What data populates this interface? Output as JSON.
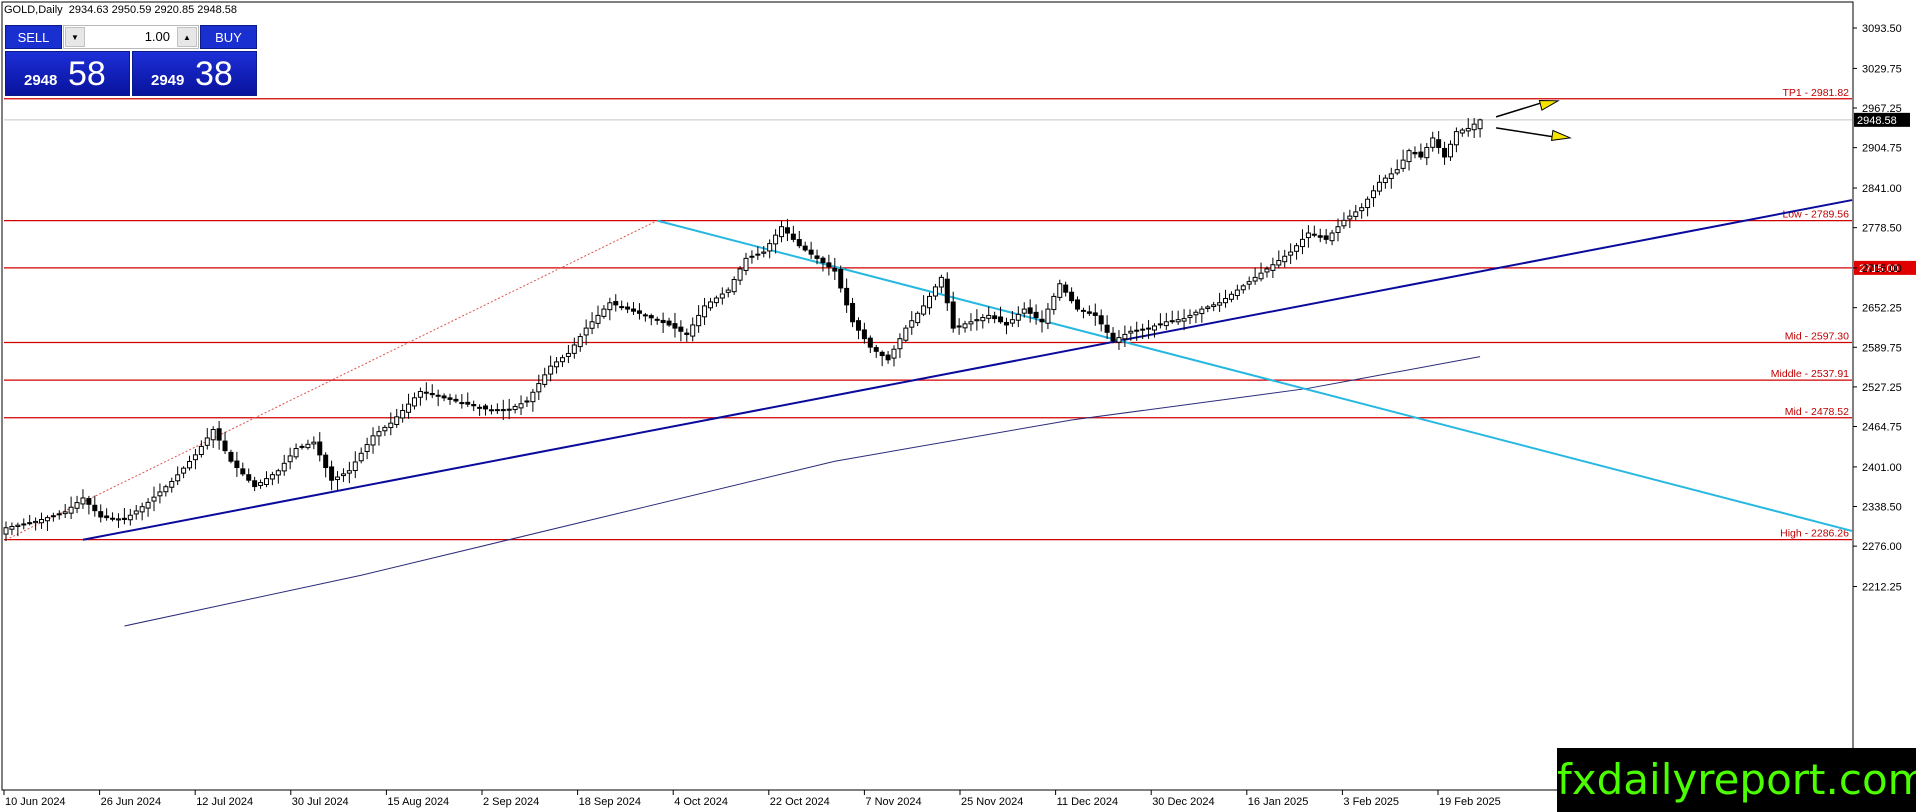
{
  "header": {
    "symbol_line": "GOLD,Daily  2934.63 2950.59 2920.85 2948.58"
  },
  "trade_panel": {
    "sell_label": "SELL",
    "buy_label": "BUY",
    "lot": "1.00",
    "sell_prefix": "2948",
    "sell_big": "58",
    "buy_prefix": "2949",
    "buy_big": "38"
  },
  "watermark": "fxdailyreport.com",
  "colors": {
    "level_line": "#d10000",
    "support_trendline": "#0a0a9c",
    "resistance_trendline": "#26b8e0",
    "moving_average": "#2b2b7a",
    "arrow_fill": "#f5e400",
    "watermark_text": "#4cff00",
    "panel_blue": "#1a2fd0"
  },
  "chart_data": {
    "type": "candlestick",
    "title": "GOLD,Daily",
    "y_ticks": [
      "3093.50",
      "3029.75",
      "2967.25",
      "2904.75",
      "2841.00",
      "2778.50",
      "2715.00",
      "2652.25",
      "2589.75",
      "2527.25",
      "2464.75",
      "2401.00",
      "2338.50",
      "2276.00",
      "2212.25"
    ],
    "x_ticks": [
      "10 Jun 2024",
      "26 Jun 2024",
      "12 Jul 2024",
      "30 Jul 2024",
      "15 Aug 2024",
      "2 Sep 2024",
      "18 Sep 2024",
      "4 Oct 2024",
      "22 Oct 2024",
      "7 Nov 2024",
      "25 Nov 2024",
      "11 Dec 2024",
      "30 Dec 2024",
      "16 Jan 2025",
      "3 Feb 2025",
      "19 Feb 2025"
    ],
    "ylim": [
      2150,
      3125
    ],
    "current_price": "2948.58",
    "last_ohlc": {
      "open": 2934.63,
      "high": 2950.59,
      "low": 2920.85,
      "close": 2948.58
    },
    "levels": [
      {
        "label": "TP1 - 2981.82",
        "value": 2981.82
      },
      {
        "label": "Low - 2789.56",
        "value": 2789.56
      },
      {
        "label": "2715.00",
        "value": 2715.0
      },
      {
        "label": "Mid - 2597.30",
        "value": 2597.3
      },
      {
        "label": "Middle - 2537.91",
        "value": 2537.91
      },
      {
        "label": "Mid - 2478.52",
        "value": 2478.52
      },
      {
        "label": "High - 2286.26",
        "value": 2286.26
      }
    ],
    "close_path": [
      [
        0,
        2305
      ],
      [
        5,
        2315
      ],
      [
        10,
        2330
      ],
      [
        13,
        2352
      ],
      [
        16,
        2322
      ],
      [
        20,
        2318
      ],
      [
        24,
        2345
      ],
      [
        28,
        2378
      ],
      [
        32,
        2420
      ],
      [
        35,
        2460
      ],
      [
        38,
        2410
      ],
      [
        42,
        2370
      ],
      [
        46,
        2395
      ],
      [
        49,
        2430
      ],
      [
        52,
        2440
      ],
      [
        55,
        2380
      ],
      [
        58,
        2395
      ],
      [
        62,
        2450
      ],
      [
        65,
        2470
      ],
      [
        70,
        2520
      ],
      [
        74,
        2510
      ],
      [
        78,
        2500
      ],
      [
        82,
        2490
      ],
      [
        85,
        2492
      ],
      [
        88,
        2505
      ],
      [
        92,
        2560
      ],
      [
        95,
        2580
      ],
      [
        98,
        2620
      ],
      [
        102,
        2660
      ],
      [
        105,
        2650
      ],
      [
        108,
        2640
      ],
      [
        112,
        2625
      ],
      [
        115,
        2610
      ],
      [
        118,
        2655
      ],
      [
        122,
        2680
      ],
      [
        125,
        2730
      ],
      [
        128,
        2740
      ],
      [
        131,
        2780
      ],
      [
        134,
        2750
      ],
      [
        137,
        2730
      ],
      [
        140,
        2710
      ],
      [
        143,
        2630
      ],
      [
        146,
        2590
      ],
      [
        149,
        2570
      ],
      [
        152,
        2620
      ],
      [
        155,
        2655
      ],
      [
        158,
        2700
      ],
      [
        160,
        2620
      ],
      [
        163,
        2630
      ],
      [
        166,
        2640
      ],
      [
        169,
        2625
      ],
      [
        172,
        2650
      ],
      [
        175,
        2630
      ],
      [
        178,
        2690
      ],
      [
        181,
        2650
      ],
      [
        184,
        2640
      ],
      [
        187,
        2600
      ],
      [
        190,
        2615
      ],
      [
        193,
        2620
      ],
      [
        196,
        2630
      ],
      [
        199,
        2635
      ],
      [
        202,
        2650
      ],
      [
        205,
        2660
      ],
      [
        208,
        2680
      ],
      [
        211,
        2700
      ],
      [
        214,
        2720
      ],
      [
        217,
        2740
      ],
      [
        220,
        2770
      ],
      [
        223,
        2760
      ],
      [
        226,
        2790
      ],
      [
        229,
        2810
      ],
      [
        232,
        2850
      ],
      [
        235,
        2870
      ],
      [
        237,
        2900
      ],
      [
        239,
        2890
      ],
      [
        241,
        2920
      ],
      [
        243,
        2890
      ],
      [
        245,
        2930
      ],
      [
        247,
        2935
      ],
      [
        249,
        2948.58
      ]
    ],
    "moving_average": [
      [
        20,
        2150
      ],
      [
        60,
        2230
      ],
      [
        100,
        2320
      ],
      [
        140,
        2410
      ],
      [
        180,
        2475
      ],
      [
        220,
        2525
      ],
      [
        249,
        2575
      ]
    ]
  }
}
